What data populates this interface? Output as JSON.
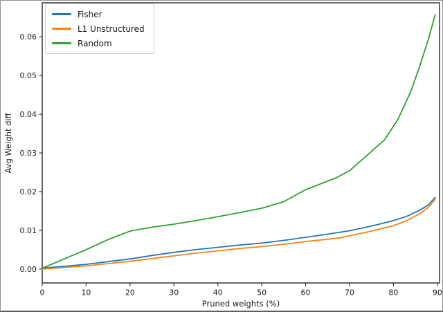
{
  "figure": {
    "background": "#ffffff",
    "border_color": "#8e8e8e",
    "axis_color": "#333333",
    "tick_label_color": "#1a1a1a"
  },
  "chart_data": {
    "type": "line",
    "title": "",
    "xlabel": "Pruned weights (%)",
    "ylabel": "Avg Weight diff",
    "xlim": [
      0,
      90.5
    ],
    "ylim": [
      -0.0036,
      0.0688
    ],
    "x_ticks": [
      0,
      10,
      20,
      30,
      40,
      50,
      60,
      70,
      80,
      90
    ],
    "y_ticks": [
      "0.00",
      "0.01",
      "0.02",
      "0.03",
      "0.04",
      "0.05",
      "0.06"
    ],
    "grid": false,
    "legend_position": "upper left",
    "line_width": 1.8,
    "series": [
      {
        "name": "Fisher",
        "color": "#1f77b4",
        "points": [
          [
            0,
            0.0002
          ],
          [
            5,
            0.0007
          ],
          [
            10,
            0.0012
          ],
          [
            15,
            0.0019
          ],
          [
            20,
            0.0026
          ],
          [
            25,
            0.0035
          ],
          [
            30,
            0.0043
          ],
          [
            35,
            0.005
          ],
          [
            40,
            0.0056
          ],
          [
            45,
            0.0062
          ],
          [
            50,
            0.0067
          ],
          [
            55,
            0.0074
          ],
          [
            60,
            0.0082
          ],
          [
            65,
            0.009
          ],
          [
            70,
            0.0099
          ],
          [
            75,
            0.0111
          ],
          [
            80,
            0.0125
          ],
          [
            83,
            0.0136
          ],
          [
            86,
            0.0152
          ],
          [
            88,
            0.0166
          ],
          [
            89.5,
            0.0185
          ]
        ]
      },
      {
        "name": "L1 Unstructured",
        "color": "#ff7f0e",
        "points": [
          [
            0,
            0.0
          ],
          [
            5,
            0.0004
          ],
          [
            10,
            0.0008
          ],
          [
            15,
            0.0014
          ],
          [
            20,
            0.002
          ],
          [
            25,
            0.0027
          ],
          [
            30,
            0.0034
          ],
          [
            35,
            0.0041
          ],
          [
            40,
            0.0047
          ],
          [
            45,
            0.0053
          ],
          [
            50,
            0.0058
          ],
          [
            55,
            0.0064
          ],
          [
            60,
            0.0071
          ],
          [
            65,
            0.0077
          ],
          [
            68,
            0.0081
          ],
          [
            70,
            0.0086
          ],
          [
            75,
            0.0098
          ],
          [
            80,
            0.0112
          ],
          [
            83,
            0.0125
          ],
          [
            86,
            0.0143
          ],
          [
            88,
            0.016
          ],
          [
            89.5,
            0.018
          ]
        ]
      },
      {
        "name": "Random",
        "color": "#2ca02c",
        "points": [
          [
            0,
            0.0002
          ],
          [
            5,
            0.0026
          ],
          [
            10,
            0.005
          ],
          [
            15,
            0.0076
          ],
          [
            20,
            0.0098
          ],
          [
            25,
            0.0108
          ],
          [
            30,
            0.0116
          ],
          [
            35,
            0.0125
          ],
          [
            40,
            0.0135
          ],
          [
            45,
            0.0146
          ],
          [
            50,
            0.0157
          ],
          [
            55,
            0.0174
          ],
          [
            60,
            0.0205
          ],
          [
            65,
            0.0227
          ],
          [
            67,
            0.0236
          ],
          [
            70,
            0.0254
          ],
          [
            75,
            0.0304
          ],
          [
            78,
            0.0334
          ],
          [
            81,
            0.0386
          ],
          [
            84,
            0.046
          ],
          [
            86,
            0.0525
          ],
          [
            88,
            0.0595
          ],
          [
            89.5,
            0.0657
          ]
        ]
      }
    ]
  }
}
